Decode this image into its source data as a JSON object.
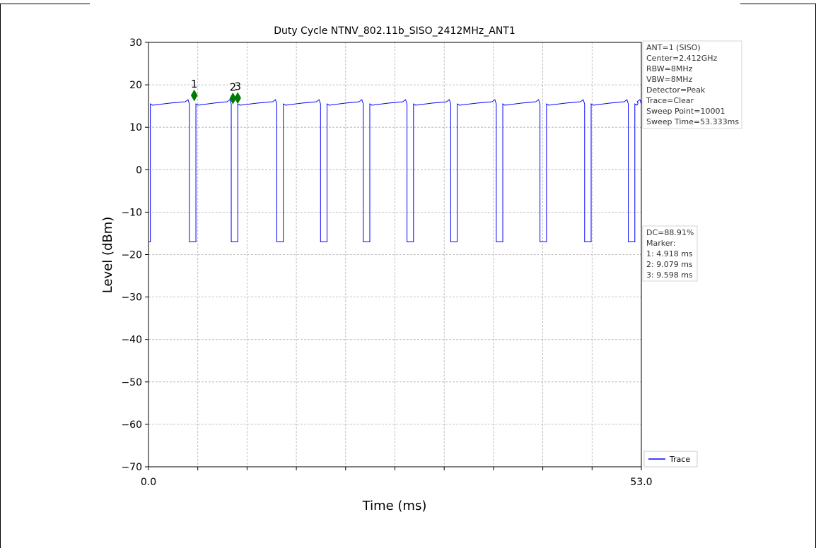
{
  "chart_data": {
    "type": "line",
    "title": "Duty Cycle NTNV_802.11b_SISO_2412MHz_ANT1",
    "xlabel": "Time (ms)",
    "ylabel": "Level (dBm)",
    "xlim": [
      0.0,
      53.0
    ],
    "ylim": [
      -70,
      30
    ],
    "x_tick_labels": [
      "0.0",
      "53.0"
    ],
    "y_ticks": [
      30,
      20,
      10,
      0,
      -10,
      -20,
      -30,
      -40,
      -50,
      -60,
      -70
    ],
    "y_tick_labels": [
      "30",
      "20",
      "10",
      "0",
      "−10",
      "−20",
      "−30",
      "−40",
      "−50",
      "−60",
      "−70"
    ],
    "grid": true,
    "legend": {
      "position": "lower-right",
      "entries": [
        "Trace"
      ]
    },
    "series": [
      {
        "name": "Trace",
        "color": "#0000ff",
        "on_level": 15.5,
        "off_level": -17.0,
        "on_intervals_ms": [
          [
            0.2,
            4.4
          ],
          [
            5.1,
            8.9
          ],
          [
            9.6,
            13.8
          ],
          [
            14.5,
            18.5
          ],
          [
            19.2,
            23.1
          ],
          [
            23.8,
            27.8
          ],
          [
            28.5,
            32.5
          ],
          [
            33.2,
            37.4
          ],
          [
            38.1,
            42.1
          ],
          [
            42.8,
            46.9
          ],
          [
            47.6,
            51.6
          ],
          [
            52.3,
            53.0
          ]
        ]
      }
    ],
    "markers": [
      {
        "label": "1",
        "x": 4.918,
        "y": 17.5
      },
      {
        "label": "2",
        "x": 9.079,
        "y": 16.8
      },
      {
        "label": "3",
        "x": 9.598,
        "y": 16.9
      }
    ],
    "marker_color": "#007a00",
    "info_box": [
      "ANT=1 (SISO)",
      "Center=2.412GHz",
      "RBW=8MHz",
      "VBW=8MHz",
      "Detector=Peak",
      "Trace=Clear",
      "Sweep Point=10001",
      "Sweep Time=53.333ms"
    ],
    "dc_box": [
      "DC=88.91%",
      "Marker:",
      "1: 4.918 ms",
      "2: 9.079 ms",
      "3: 9.598 ms"
    ]
  }
}
